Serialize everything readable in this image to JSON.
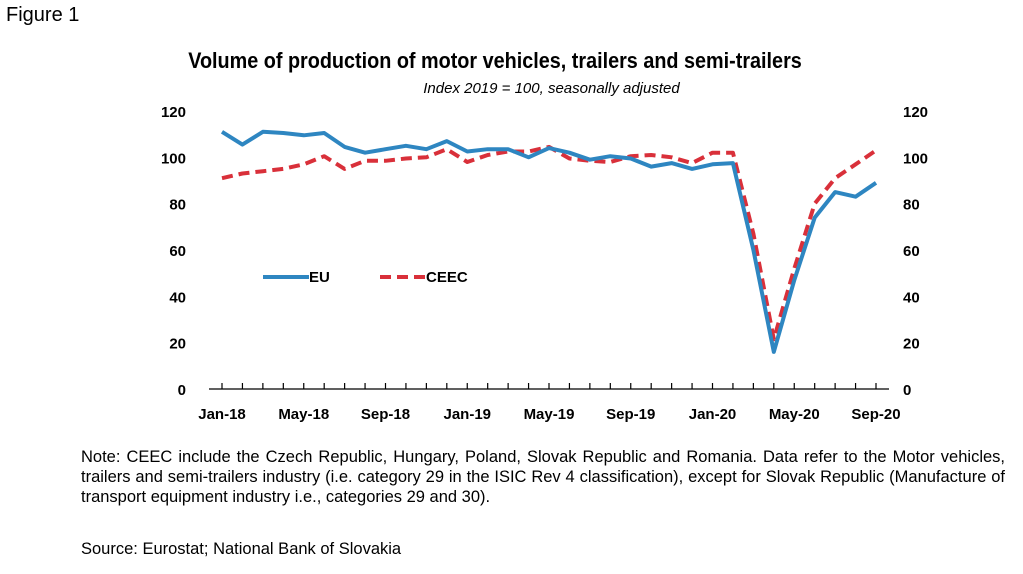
{
  "figure_label": "Figure 1",
  "chart_data": {
    "type": "line",
    "title": "Volume of production of motor vehicles, trailers and semi-trailers",
    "subtitle": "Index 2019 = 100, seasonally adjusted",
    "xlabel": "",
    "ylabel": "",
    "ylim": [
      0,
      120
    ],
    "yticks": [
      0,
      20,
      40,
      60,
      80,
      100,
      120
    ],
    "x_tick_labels": [
      "Jan-18",
      "May-18",
      "Sep-18",
      "Jan-19",
      "May-19",
      "Sep-19",
      "Jan-20",
      "May-20",
      "Sep-20"
    ],
    "x_tick_label_indices": [
      0,
      4,
      8,
      12,
      16,
      20,
      24,
      28,
      32
    ],
    "x": [
      "Jan-18",
      "Feb-18",
      "Mar-18",
      "Apr-18",
      "May-18",
      "Jun-18",
      "Jul-18",
      "Aug-18",
      "Sep-18",
      "Oct-18",
      "Nov-18",
      "Dec-18",
      "Jan-19",
      "Feb-19",
      "Mar-19",
      "Apr-19",
      "May-19",
      "Jun-19",
      "Jul-19",
      "Aug-19",
      "Sep-19",
      "Oct-19",
      "Nov-19",
      "Dec-19",
      "Jan-20",
      "Feb-20",
      "Mar-20",
      "Apr-20",
      "May-20",
      "Jun-20",
      "Jul-20",
      "Aug-20",
      "Sep-20"
    ],
    "series": [
      {
        "name": "EU",
        "color": "#2E86C1",
        "style": "solid",
        "values": [
          111,
          105.5,
          111,
          110.5,
          109.5,
          110.5,
          104.5,
          102,
          103.5,
          105,
          103.5,
          107,
          102.5,
          103.5,
          103.5,
          100,
          104,
          102,
          99,
          100.5,
          99.5,
          96,
          97.5,
          95,
          97,
          97.5,
          60,
          16,
          47,
          74,
          85,
          83,
          89
        ]
      },
      {
        "name": "CEEC",
        "color": "#D9303A",
        "style": "dashed",
        "values": [
          91,
          93,
          94,
          95,
          97,
          100.5,
          95,
          98.5,
          98.5,
          99.5,
          100,
          103.5,
          98,
          101,
          102.5,
          102.5,
          104.5,
          99.5,
          98.5,
          98,
          100.5,
          101,
          100,
          97.5,
          102,
          102,
          67,
          21.5,
          52,
          80,
          91,
          97,
          103
        ]
      }
    ],
    "legend_position": "center-left"
  },
  "note": "Note: CEEC include the Czech Republic, Hungary, Poland, Slovak Republic and Romania. Data refer to the Motor vehicles, trailers and semi-trailers industry (i.e. category 29 in the ISIC Rev 4 classification), except for Slovak Republic (Manufacture of transport equipment industry i.e., categories 29 and 30).",
  "source": "Source: Eurostat; National Bank of Slovakia"
}
